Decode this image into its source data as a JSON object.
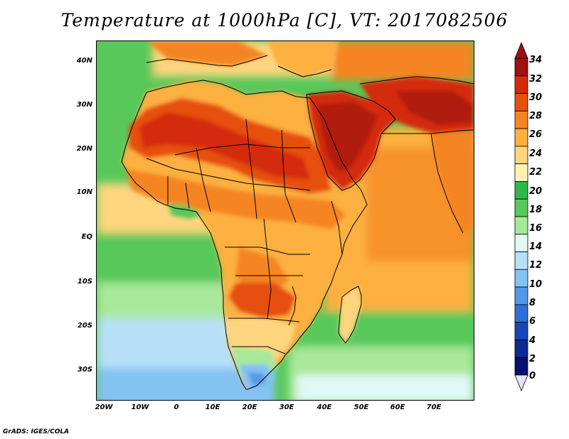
{
  "title": "Temperature at 1000hPa [C], VT: 2017082506",
  "credit": "GrADS: IGES/COLA",
  "map": {
    "projection": "latlon",
    "lon_range": [
      -20,
      80
    ],
    "lat_range": [
      -37,
      45
    ],
    "lat_labels": [
      "40N",
      "30N",
      "20N",
      "10N",
      "EQ",
      "10S",
      "20S",
      "30S"
    ],
    "lat_values": [
      40,
      30,
      20,
      10,
      0,
      -10,
      -20,
      -30
    ],
    "lon_labels": [
      "20W",
      "10W",
      "0",
      "10E",
      "20E",
      "30E",
      "40E",
      "50E",
      "60E",
      "70E"
    ],
    "lon_values": [
      -20,
      -10,
      0,
      10,
      20,
      30,
      40,
      50,
      60,
      70
    ]
  },
  "colorbar": {
    "levels": [
      "34",
      "32",
      "30",
      "28",
      "26",
      "24",
      "22",
      "20",
      "18",
      "16",
      "14",
      "12",
      "10",
      "8",
      "6",
      "4",
      "2",
      "0"
    ],
    "colors": [
      "#a01010",
      "#d42a0a",
      "#e6500f",
      "#f58520",
      "#fbb040",
      "#fdd57e",
      "#fff3b4",
      "#2db84a",
      "#58c85a",
      "#a8e89a",
      "#e1f8f5",
      "#b7e0f8",
      "#84c2f2",
      "#5599e8",
      "#3070d6",
      "#1848b8",
      "#0c2a92",
      "#08106e"
    ]
  }
}
